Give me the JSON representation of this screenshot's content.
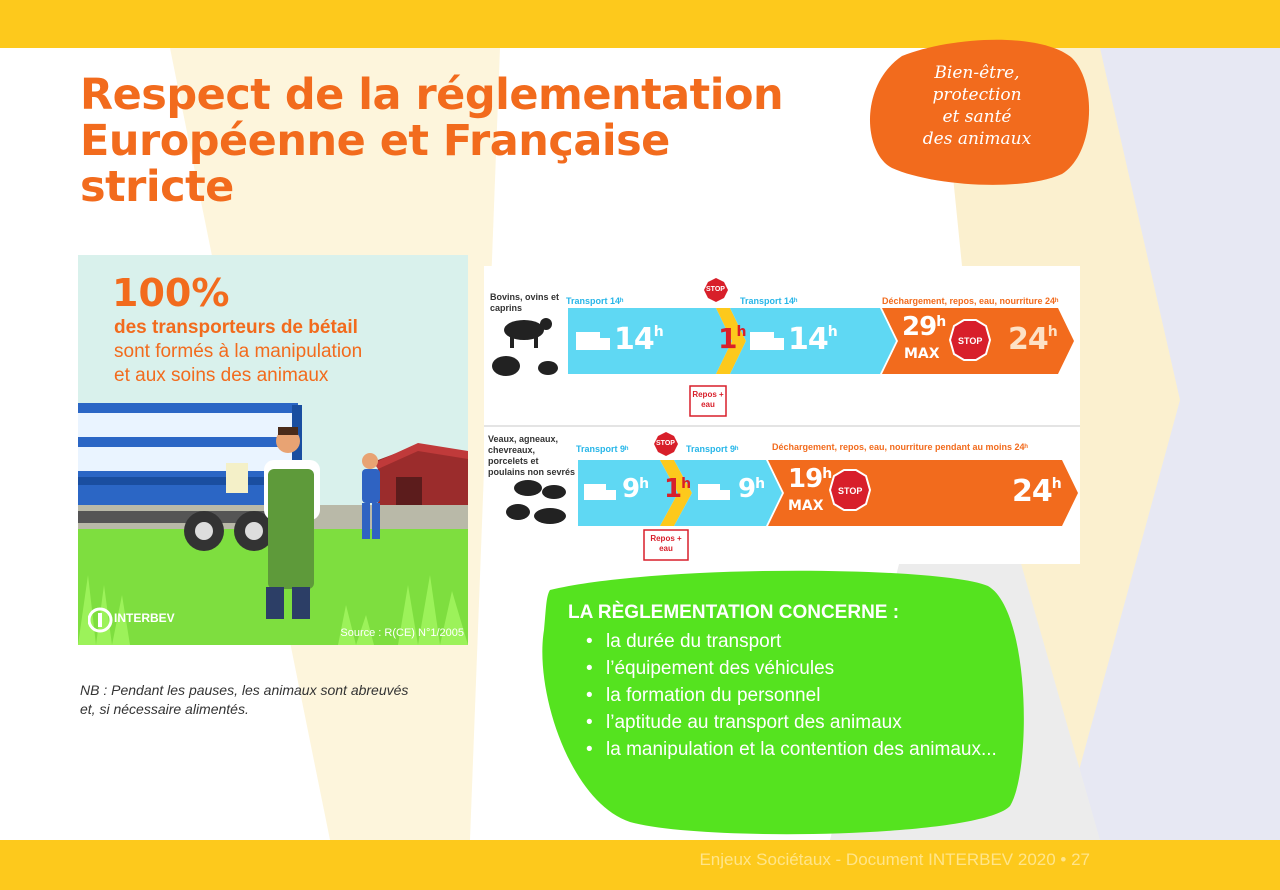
{
  "title_lines": [
    "Respect de la réglementation",
    "Européenne et Française",
    "stricte"
  ],
  "badge_lines": [
    "Bien-être,",
    "protection",
    "et santé",
    "des animaux"
  ],
  "illustration": {
    "stat_number": "100%",
    "stat_line1": "des transporteurs de bétail",
    "stat_line2": "sont formés à la manipulation",
    "stat_line3": "et aux soins des animaux",
    "source": "Source : R(CE) N°1/2005",
    "logo_text": "INTERBEV"
  },
  "nb_lines": [
    "NB : Pendant les pauses, les animaux sont abreuvés",
    "et, si nécessaire alimentés."
  ],
  "diagram": {
    "row1": {
      "species": "Bovins, ovins et caprins",
      "label_transport_a": "Transport 14ʰ",
      "label_transport_b": "Transport 14ʰ",
      "label_unloading": "Déchargement, repos, eau, nourriture 24ʰ",
      "hours_a": "14",
      "hours_b": "14",
      "pause": "1",
      "max_hours": "29",
      "max_label": "MAX",
      "rest_hours": "24",
      "repos": "Repos + eau"
    },
    "row2": {
      "species": "Veaux, agneaux, chevreaux, porcelets et poulains non sevrés",
      "label_transport_a": "Transport 9ʰ",
      "label_transport_b": "Transport 9ʰ",
      "label_unloading": "Déchargement, repos, eau, nourriture pendant au moins 24ʰ",
      "hours_a": "9",
      "hours_b": "9",
      "pause": "1",
      "max_hours": "19",
      "max_label": "MAX",
      "rest_hours": "24",
      "repos": "Repos + eau"
    },
    "hour_unit": "h",
    "stop_text": "STOP"
  },
  "regulation": {
    "heading": "LA RÈGLEMENTATION CONCERNE :",
    "items": [
      "la durée du transport",
      "l’équipement des véhicules",
      "la formation du personnel",
      "l’aptitude au transport des animaux",
      "la manipulation et la contention des animaux..."
    ]
  },
  "footer": "Enjeux Sociétaux - Document INTERBEV 2020 • 27",
  "colors": {
    "orange": "#f26b1d",
    "yellow": "#fdc91c",
    "green": "#55e31f",
    "cyan": "#5fd8f3",
    "stop_red": "#d81f2a"
  }
}
